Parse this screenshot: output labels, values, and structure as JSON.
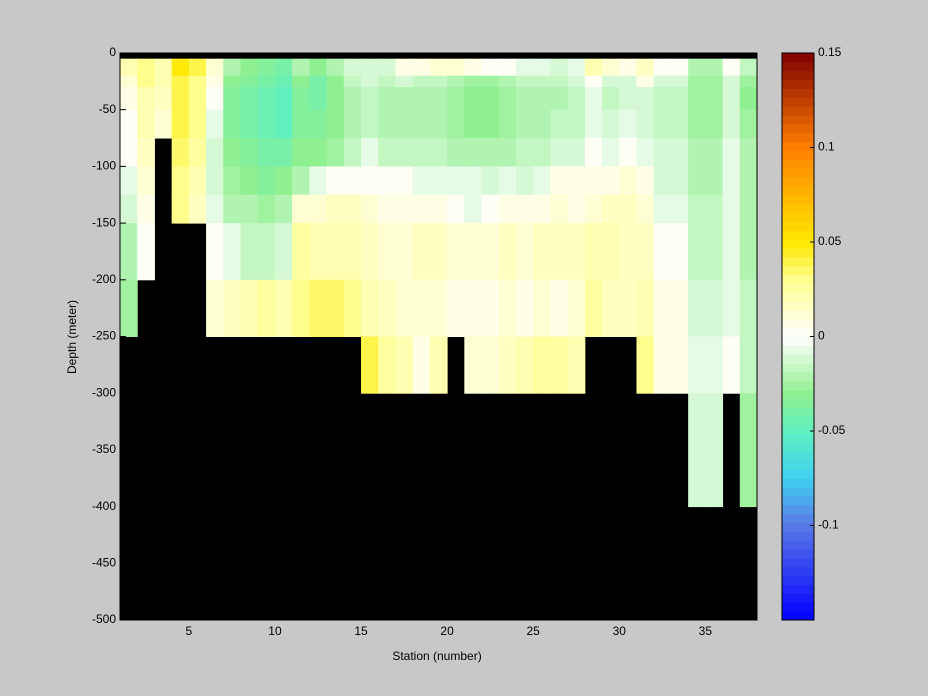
{
  "chart_data": {
    "type": "heatmap",
    "xlabel": "Station (number)",
    "ylabel": "Depth (meter)",
    "x": [
      1,
      2,
      3,
      4,
      5,
      6,
      7,
      8,
      9,
      10,
      11,
      12,
      13,
      14,
      15,
      16,
      17,
      18,
      19,
      20,
      21,
      22,
      23,
      24,
      25,
      26,
      27,
      28,
      29,
      30,
      31,
      32,
      33,
      34,
      35,
      36,
      37,
      38
    ],
    "y": [
      0,
      -5,
      -20,
      -30,
      -50,
      -75,
      -100,
      -125,
      -150,
      -200,
      -250,
      -300,
      -400,
      -500
    ],
    "z": [
      [
        null,
        0.02,
        0.01,
        0.005,
        0.003,
        0.002,
        -0.005,
        -0.01,
        -0.02,
        -0.025,
        null,
        null,
        null
      ],
      [
        null,
        0.03,
        0.03,
        0.02,
        0.02,
        0.015,
        0.01,
        0.005,
        0.002,
        null,
        null,
        null,
        null
      ],
      [
        null,
        0.02,
        0.02,
        0.015,
        0.01,
        null,
        null,
        null,
        null,
        null,
        null,
        null,
        null
      ],
      [
        null,
        0.05,
        0.04,
        0.04,
        0.04,
        0.035,
        0.03,
        0.03,
        null,
        null,
        null,
        null,
        null
      ],
      [
        null,
        0.04,
        0.03,
        0.03,
        0.03,
        0.025,
        0.02,
        0.015,
        null,
        null,
        null,
        null,
        null
      ],
      [
        null,
        0.01,
        0.005,
        0,
        -0.005,
        -0.01,
        -0.01,
        -0.005,
        0,
        0.01,
        null,
        null,
        null
      ],
      [
        null,
        -0.02,
        -0.03,
        -0.035,
        -0.035,
        -0.03,
        -0.025,
        -0.02,
        -0.005,
        0.015,
        null,
        null,
        null
      ],
      [
        null,
        -0.03,
        -0.035,
        -0.04,
        -0.04,
        -0.035,
        -0.03,
        -0.02,
        -0.015,
        0.02,
        null,
        null,
        null
      ],
      [
        null,
        -0.035,
        -0.04,
        -0.045,
        -0.045,
        -0.04,
        -0.035,
        -0.025,
        -0.015,
        0.025,
        null,
        null,
        null
      ],
      [
        null,
        -0.04,
        -0.045,
        -0.05,
        -0.05,
        -0.04,
        -0.03,
        -0.02,
        -0.01,
        0.02,
        null,
        null,
        null
      ],
      [
        null,
        -0.02,
        -0.03,
        -0.035,
        -0.035,
        -0.03,
        -0.02,
        0.01,
        0.025,
        0.03,
        null,
        null,
        null
      ],
      [
        null,
        -0.03,
        -0.04,
        -0.04,
        -0.035,
        -0.03,
        -0.005,
        0.01,
        0.02,
        0.035,
        null,
        null,
        null
      ],
      [
        null,
        -0.02,
        -0.03,
        -0.03,
        -0.03,
        -0.025,
        0,
        0.015,
        0.02,
        0.035,
        null,
        null,
        null
      ],
      [
        null,
        -0.01,
        -0.015,
        -0.02,
        -0.02,
        -0.015,
        0.003,
        0.015,
        0.02,
        0.03,
        null,
        null,
        null
      ],
      [
        null,
        -0.01,
        -0.01,
        -0.015,
        -0.015,
        -0.005,
        0.003,
        0.01,
        0.015,
        0.02,
        0.04,
        null,
        null
      ],
      [
        null,
        -0.01,
        -0.015,
        -0.02,
        -0.02,
        -0.015,
        0,
        0.005,
        0.01,
        0.015,
        0.025,
        null,
        null
      ],
      [
        null,
        0.005,
        -0.01,
        -0.02,
        -0.02,
        -0.015,
        0,
        0.005,
        0.01,
        0.01,
        0.02,
        null,
        null
      ],
      [
        null,
        0.005,
        -0.015,
        -0.02,
        -0.02,
        -0.015,
        -0.005,
        0.005,
        0.015,
        0.01,
        0.005,
        null,
        null
      ],
      [
        null,
        0.01,
        -0.015,
        -0.02,
        -0.02,
        -0.015,
        -0.005,
        0.005,
        0.015,
        0.01,
        0.02,
        null,
        null
      ],
      [
        null,
        0.01,
        -0.02,
        -0.025,
        -0.025,
        -0.02,
        -0.005,
        0,
        0.01,
        0.005,
        null,
        null,
        null
      ],
      [
        null,
        0.005,
        -0.025,
        -0.03,
        -0.03,
        -0.02,
        -0.005,
        -0.005,
        0.01,
        0.005,
        0.01,
        null,
        null
      ],
      [
        null,
        0,
        -0.025,
        -0.03,
        -0.03,
        -0.02,
        -0.01,
        0,
        0.01,
        0.005,
        0.01,
        null,
        null
      ],
      [
        null,
        0,
        -0.02,
        -0.025,
        -0.025,
        -0.02,
        -0.005,
        0.005,
        0.015,
        0.01,
        0.015,
        null,
        null
      ],
      [
        null,
        -0.005,
        -0.015,
        -0.02,
        -0.02,
        -0.015,
        -0.01,
        0.005,
        0.01,
        0.005,
        0.02,
        null,
        null
      ],
      [
        null,
        -0.005,
        -0.015,
        -0.02,
        -0.02,
        -0.015,
        -0.005,
        0.005,
        0.015,
        0.01,
        0.025,
        null,
        null
      ],
      [
        null,
        -0.01,
        -0.015,
        -0.02,
        -0.015,
        -0.01,
        0.005,
        0.01,
        0.015,
        0.005,
        0.025,
        null,
        null
      ],
      [
        null,
        -0.005,
        -0.01,
        -0.015,
        -0.015,
        -0.01,
        0.005,
        0.005,
        0.015,
        0.01,
        0.02,
        null,
        null
      ],
      [
        null,
        0.02,
        0,
        -0.005,
        -0.005,
        0,
        0.005,
        0.01,
        0.02,
        0.025,
        null,
        null,
        null
      ],
      [
        null,
        0.01,
        -0.01,
        -0.015,
        -0.01,
        -0.005,
        0.005,
        0.015,
        0.02,
        0.015,
        null,
        null,
        null
      ],
      [
        null,
        0.005,
        -0.01,
        -0.01,
        -0.005,
        0,
        0.01,
        0.015,
        0.015,
        0.015,
        null,
        null,
        null
      ],
      [
        null,
        0.015,
        0.005,
        -0.01,
        -0.01,
        -0.005,
        0.005,
        0.01,
        0.015,
        0.02,
        0.03,
        null,
        null
      ],
      [
        null,
        0,
        -0.01,
        -0.015,
        -0.015,
        -0.01,
        -0.01,
        -0.005,
        0.003,
        0.005,
        0.005,
        null,
        null
      ],
      [
        null,
        0,
        -0.01,
        -0.015,
        -0.015,
        -0.01,
        -0.01,
        -0.005,
        0.003,
        0.005,
        0.005,
        null,
        null
      ],
      [
        null,
        -0.02,
        -0.025,
        -0.025,
        -0.025,
        -0.02,
        -0.02,
        -0.015,
        -0.015,
        -0.01,
        -0.005,
        -0.01,
        null
      ],
      [
        null,
        -0.02,
        -0.025,
        -0.025,
        -0.025,
        -0.02,
        -0.02,
        -0.015,
        -0.015,
        -0.01,
        -0.005,
        -0.01,
        null
      ],
      [
        null,
        0,
        -0.01,
        -0.01,
        -0.01,
        -0.005,
        -0.005,
        -0.005,
        -0.005,
        -0.005,
        0,
        null,
        null
      ],
      [
        null,
        -0.015,
        -0.025,
        -0.03,
        -0.025,
        -0.02,
        -0.02,
        -0.02,
        -0.02,
        -0.015,
        -0.015,
        -0.025,
        null
      ]
    ],
    "xlim": [
      1,
      38
    ],
    "ylim": [
      -500,
      0
    ],
    "xticks": [
      5,
      10,
      15,
      20,
      25,
      30,
      35
    ],
    "yticks": [
      0,
      -50,
      -100,
      -150,
      -200,
      -250,
      -300,
      -350,
      -400,
      -450,
      -500
    ],
    "clim": [
      -0.15,
      0.15
    ],
    "cticks": [
      -0.1,
      -0.05,
      0,
      0.05,
      0.1,
      0.15
    ],
    "missing_color": "#000000",
    "colormap": [
      [
        -0.15,
        "#0000ff"
      ],
      [
        -0.1,
        "#5a78e6"
      ],
      [
        -0.075,
        "#40d0f0"
      ],
      [
        -0.05,
        "#60f0c0"
      ],
      [
        -0.03,
        "#90f090"
      ],
      [
        0,
        "#ffffff"
      ],
      [
        0.03,
        "#ffff90"
      ],
      [
        0.05,
        "#ffe800"
      ],
      [
        0.1,
        "#ff8000"
      ],
      [
        0.15,
        "#800000"
      ]
    ],
    "levels": 64
  }
}
